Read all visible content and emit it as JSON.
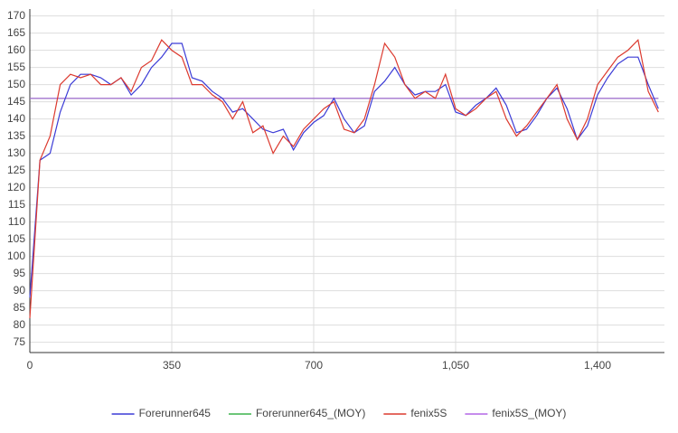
{
  "chart_data": {
    "type": "line",
    "x": [
      0,
      25,
      50,
      75,
      100,
      125,
      150,
      175,
      200,
      225,
      250,
      275,
      300,
      325,
      350,
      375,
      400,
      425,
      450,
      475,
      500,
      525,
      550,
      575,
      600,
      625,
      650,
      675,
      700,
      725,
      750,
      775,
      800,
      825,
      850,
      875,
      900,
      925,
      950,
      975,
      1000,
      1025,
      1050,
      1075,
      1100,
      1125,
      1150,
      1175,
      1200,
      1225,
      1250,
      1275,
      1300,
      1325,
      1350,
      1375,
      1400,
      1425,
      1450,
      1475,
      1500,
      1525,
      1550
    ],
    "series": [
      {
        "name": "Forerunner645",
        "color": "#3b3bd6",
        "values": [
          88,
          128,
          130,
          142,
          150,
          153,
          153,
          152,
          150,
          152,
          147,
          150,
          155,
          158,
          162,
          162,
          152,
          151,
          148,
          146,
          142,
          143,
          140,
          137,
          136,
          137,
          131,
          136,
          139,
          141,
          146,
          140,
          136,
          138,
          148,
          151,
          155,
          150,
          147,
          148,
          148,
          150,
          142,
          141,
          144,
          146,
          149,
          144,
          136,
          137,
          141,
          146,
          149,
          143,
          134,
          138,
          147,
          152,
          156,
          158,
          158,
          150,
          143
        ]
      },
      {
        "name": "Forerunner645_(MOY)",
        "color": "#3cb44b",
        "values": [
          146,
          146,
          146,
          146,
          146,
          146,
          146,
          146,
          146,
          146,
          146,
          146,
          146,
          146,
          146,
          146,
          146,
          146,
          146,
          146,
          146,
          146,
          146,
          146,
          146,
          146,
          146,
          146,
          146,
          146,
          146,
          146,
          146,
          146,
          146,
          146,
          146,
          146,
          146,
          146,
          146,
          146,
          146,
          146,
          146,
          146,
          146,
          146,
          146,
          146,
          146,
          146,
          146,
          146,
          146,
          146,
          146,
          146,
          146,
          146,
          146,
          146,
          146
        ]
      },
      {
        "name": "fenix5S",
        "color": "#dc3a2f",
        "values": [
          82,
          128,
          135,
          150,
          153,
          152,
          153,
          150,
          150,
          152,
          148,
          155,
          157,
          163,
          160,
          158,
          150,
          150,
          147,
          145,
          140,
          145,
          136,
          138,
          130,
          135,
          132,
          137,
          140,
          143,
          145,
          137,
          136,
          140,
          150,
          162,
          158,
          150,
          146,
          148,
          146,
          153,
          143,
          141,
          143,
          146,
          148,
          140,
          135,
          138,
          142,
          146,
          150,
          140,
          134,
          140,
          150,
          154,
          158,
          160,
          163,
          148,
          142
        ]
      },
      {
        "name": "fenix5S_(MOY)",
        "color": "#b366e6",
        "values": [
          146,
          146,
          146,
          146,
          146,
          146,
          146,
          146,
          146,
          146,
          146,
          146,
          146,
          146,
          146,
          146,
          146,
          146,
          146,
          146,
          146,
          146,
          146,
          146,
          146,
          146,
          146,
          146,
          146,
          146,
          146,
          146,
          146,
          146,
          146,
          146,
          146,
          146,
          146,
          146,
          146,
          146,
          146,
          146,
          146,
          146,
          146,
          146,
          146,
          146,
          146,
          146,
          146,
          146,
          146,
          146,
          146,
          146,
          146,
          146,
          146,
          146,
          146
        ]
      }
    ],
    "xlim": [
      0,
      1565
    ],
    "xticks": [
      0,
      350,
      700,
      {
        "value": 1050,
        "label": "1,050"
      },
      {
        "value": 1400,
        "label": "1,400"
      }
    ],
    "ylim": [
      72,
      172
    ],
    "yticks": [
      75,
      80,
      85,
      90,
      95,
      100,
      105,
      110,
      115,
      120,
      125,
      130,
      135,
      140,
      145,
      150,
      155,
      160,
      165,
      170
    ],
    "grid": true,
    "legend": "bottom"
  }
}
